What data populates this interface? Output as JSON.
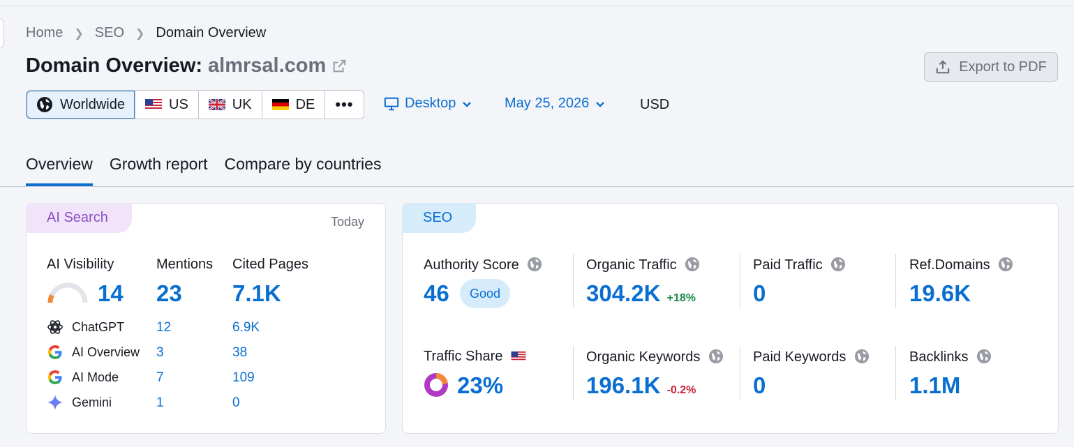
{
  "breadcrumb": {
    "home": "Home",
    "seo": "SEO",
    "current": "Domain Overview"
  },
  "title": {
    "prefix": "Domain Overview:",
    "domain": "almrsal.com"
  },
  "export_label": "Export to PDF",
  "regions": [
    {
      "label": "Worldwide",
      "icon": "globe-icon"
    },
    {
      "label": "US",
      "icon": "us-flag-icon"
    },
    {
      "label": "UK",
      "icon": "uk-flag-icon"
    },
    {
      "label": "DE",
      "icon": "de-flag-icon"
    }
  ],
  "device": "Desktop",
  "date": "May 25, 2026",
  "currency": "USD",
  "tabs": [
    "Overview",
    "Growth report",
    "Compare by countries"
  ],
  "ai_card": {
    "tag": "AI Search",
    "period": "Today",
    "visibility_label": "AI Visibility",
    "visibility_value": "14",
    "visibility_fraction": 0.14,
    "mentions_label": "Mentions",
    "mentions_value": "23",
    "cited_label": "Cited Pages",
    "cited_value": "7.1K",
    "sources": [
      {
        "name": "ChatGPT",
        "mentions": "12",
        "cited": "6.9K"
      },
      {
        "name": "AI Overview",
        "mentions": "3",
        "cited": "38"
      },
      {
        "name": "AI Mode",
        "mentions": "7",
        "cited": "109"
      },
      {
        "name": "Gemini",
        "mentions": "1",
        "cited": "0"
      }
    ]
  },
  "seo_card": {
    "tag": "SEO",
    "authority_label": "Authority Score",
    "authority_value": "46",
    "authority_badge": "Good",
    "organic_traffic_label": "Organic Traffic",
    "organic_traffic_value": "304.2K",
    "organic_traffic_delta": "+18%",
    "paid_traffic_label": "Paid Traffic",
    "paid_traffic_value": "0",
    "ref_domains_label": "Ref.Domains",
    "ref_domains_value": "19.6K",
    "traffic_share_label": "Traffic Share",
    "traffic_share_value": "23%",
    "organic_keywords_label": "Organic Keywords",
    "organic_keywords_value": "196.1K",
    "organic_keywords_delta": "-0.2%",
    "paid_keywords_label": "Paid Keywords",
    "paid_keywords_value": "0",
    "backlinks_label": "Backlinks",
    "backlinks_value": "1.1M"
  },
  "colors": {
    "accent": "#0a6fd1",
    "ai_tag_bg": "#f1e4fa",
    "seo_tag_bg": "#d6ecfb",
    "up": "#1a8a4a",
    "down": "#c8243a"
  }
}
